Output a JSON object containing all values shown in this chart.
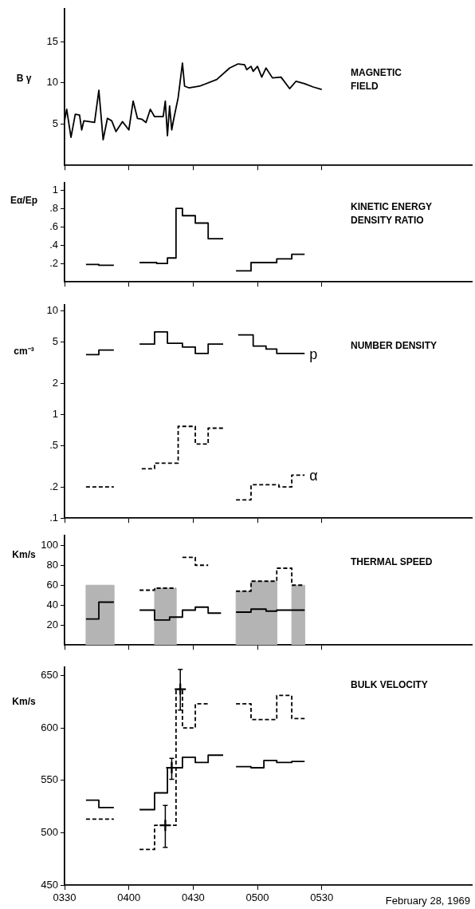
{
  "chart_data": [
    {
      "type": "line",
      "title": "MAGNETIC FIELD",
      "ylabel": "B γ",
      "xlim": [
        "1969-02-28T03:30",
        "1969-02-28T06:40"
      ],
      "xticks": [
        {
          "value": "1969-02-28T03:30",
          "label": null
        },
        {
          "value": "1969-02-28T04:00",
          "label": null
        },
        {
          "value": "1969-02-28T04:30",
          "label": null
        },
        {
          "value": "1969-02-28T05:00",
          "label": null
        },
        {
          "value": "1969-02-28T05:30",
          "label": null
        }
      ],
      "ylim": [
        0,
        19
      ],
      "yticks": [
        5,
        10,
        15
      ],
      "tick_labels": "y",
      "series": [
        {
          "color": "#000000",
          "x": [
            "1969-02-28T03:30",
            "1969-02-28T03:31",
            "1969-02-28T03:33",
            "1969-02-28T03:35",
            "1969-02-28T03:37",
            "1969-02-28T03:38",
            "1969-02-28T03:39",
            "1969-02-28T03:44",
            "1969-02-28T03:46",
            "1969-02-28T03:48",
            "1969-02-28T03:50",
            "1969-02-28T03:52",
            "1969-02-28T03:54",
            "1969-02-28T03:57",
            "1969-02-28T04:00",
            "1969-02-28T04:02",
            "1969-02-28T04:04",
            "1969-02-28T04:06",
            "1969-02-28T04:08",
            "1969-02-28T04:10",
            "1969-02-28T04:12",
            "1969-02-28T04:16",
            "1969-02-28T04:17",
            "1969-02-28T04:18",
            "1969-02-28T04:19",
            "1969-02-28T04:20",
            "1969-02-28T04:21",
            "1969-02-28T04:23",
            "1969-02-28T04:25",
            "1969-02-28T04:26",
            "1969-02-28T04:28",
            "1969-02-28T04:33",
            "1969-02-28T04:41",
            "1969-02-28T04:47",
            "1969-02-28T04:51",
            "1969-02-28T04:54",
            "1969-02-28T04:55",
            "1969-02-28T04:57",
            "1969-02-28T04:58",
            "1969-02-28T05:00",
            "1969-02-28T05:02",
            "1969-02-28T05:04",
            "1969-02-28T05:07",
            "1969-02-28T05:11",
            "1969-02-28T05:15",
            "1969-02-28T05:18",
            "1969-02-28T05:22",
            "1969-02-28T05:26",
            "1969-02-28T05:30"
          ],
          "values": [
            5.4,
            6.8,
            3.4,
            6.2,
            6.1,
            4.3,
            5.4,
            5.2,
            9.1,
            3.1,
            5.7,
            5.4,
            4.1,
            5.3,
            4.3,
            7.8,
            5.7,
            5.6,
            5.2,
            6.8,
            5.9,
            5.9,
            7.8,
            3.6,
            7.2,
            4.3,
            5.7,
            8.2,
            12.4,
            9.6,
            9.4,
            9.6,
            10.4,
            11.8,
            12.3,
            12.2,
            11.6,
            12.0,
            11.4,
            12.0,
            10.7,
            11.8,
            10.6,
            10.7,
            9.3,
            10.2,
            9.9,
            9.5,
            9.2
          ]
        }
      ]
    },
    {
      "type": "step",
      "title": "KINETIC ENERGY DENSITY RATIO",
      "ylabel": "Eα/Ep",
      "xlim": [
        "1969-02-28T03:30",
        "1969-02-28T06:40"
      ],
      "xticks": [
        {
          "value": "1969-02-28T03:30",
          "label": null
        },
        {
          "value": "1969-02-28T04:00",
          "label": null
        },
        {
          "value": "1969-02-28T04:30",
          "label": null
        },
        {
          "value": "1969-02-28T05:00",
          "label": null
        },
        {
          "value": "1969-02-28T05:30",
          "label": null
        }
      ],
      "ylim": [
        0,
        1.08
      ],
      "yticks": [
        {
          "value": 0.2,
          "label": ".2"
        },
        {
          "value": 0.4,
          "label": ".4"
        },
        {
          "value": 0.6,
          "label": ".6"
        },
        {
          "value": 0.8,
          "label": ".8"
        },
        1
      ],
      "tick_labels": "y",
      "series": [
        {
          "color": "#000000",
          "x": [
            "1969-02-28T03:40",
            "1969-02-28T03:46",
            "1969-02-28T03:53",
            "1969-02-28T03:57",
            "1969-02-28T04:05",
            "1969-02-28T04:13",
            "1969-02-28T04:18",
            "1969-02-28T04:22",
            "1969-02-28T04:25",
            "1969-02-28T04:31",
            "1969-02-28T04:37",
            "1969-02-28T04:44",
            "1969-02-28T04:47",
            "1969-02-28T04:50",
            "1969-02-28T04:57",
            "1969-02-28T05:09",
            "1969-02-28T05:16",
            "1969-02-28T05:22"
          ],
          "values": [
            0.19,
            0.18,
            0.18,
            null,
            0.21,
            0.2,
            0.26,
            0.8,
            0.72,
            0.64,
            0.47,
            0.47,
            null,
            0.12,
            0.21,
            0.25,
            0.3,
            0.3
          ]
        }
      ]
    },
    {
      "type": "step",
      "title": "NUMBER DENSITY",
      "ylabel": "cm⁻³",
      "log": "y",
      "xlim": [
        "1969-02-28T03:30",
        "1969-02-28T06:40"
      ],
      "xticks": [
        {
          "value": "1969-02-28T03:30",
          "label": null
        },
        {
          "value": "1969-02-28T04:00",
          "label": null
        },
        {
          "value": "1969-02-28T04:30",
          "label": null
        },
        {
          "value": "1969-02-28T05:00",
          "label": null
        },
        {
          "value": "1969-02-28T05:30",
          "label": null
        }
      ],
      "ylim": [
        0.1,
        11.5
      ],
      "yticks": [
        {
          "value": 0.1,
          "label": ".1"
        },
        {
          "value": 0.2,
          "label": ".2"
        },
        {
          "value": 0.5,
          "label": ".5"
        },
        1,
        2,
        5,
        10
      ],
      "tick_labels": "y",
      "series": [
        {
          "name": "p",
          "color": "#000000",
          "x": [
            "1969-02-28T03:40",
            "1969-02-28T03:46",
            "1969-02-28T03:53",
            "1969-02-28T03:57",
            "1969-02-28T04:05",
            "1969-02-28T04:12",
            "1969-02-28T04:18",
            "1969-02-28T04:25",
            "1969-02-28T04:31",
            "1969-02-28T04:37",
            "1969-02-28T04:44",
            "1969-02-28T04:47",
            "1969-02-28T04:51",
            "1969-02-28T04:58",
            "1969-02-28T05:04",
            "1969-02-28T05:09",
            "1969-02-28T05:22"
          ],
          "values": [
            3.8,
            4.2,
            4.2,
            null,
            4.8,
            6.3,
            4.9,
            4.5,
            3.9,
            4.8,
            4.8,
            null,
            5.9,
            4.6,
            4.3,
            3.9,
            3.9
          ]
        },
        {
          "name": "α",
          "color": "#000000",
          "line_style": "dashed",
          "x": [
            "1969-02-28T03:40",
            "1969-02-28T03:53",
            "1969-02-28T03:57",
            "1969-02-28T04:06",
            "1969-02-28T04:12",
            "1969-02-28T04:23",
            "1969-02-28T04:31",
            "1969-02-28T04:37",
            "1969-02-28T04:44",
            "1969-02-28T04:47",
            "1969-02-28T04:50",
            "1969-02-28T04:57",
            "1969-02-28T05:10",
            "1969-02-28T05:16",
            "1969-02-28T05:22"
          ],
          "values": [
            0.2,
            0.2,
            null,
            0.3,
            0.34,
            0.77,
            0.52,
            0.74,
            0.74,
            null,
            0.15,
            0.21,
            0.2,
            0.26,
            0.26
          ]
        }
      ]
    },
    {
      "type": "step",
      "title": "THERMAL SPEED",
      "ylabel": "Km/s",
      "xlim": [
        "1969-02-28T03:30",
        "1969-02-28T06:40"
      ],
      "xticks": [
        {
          "value": "1969-02-28T03:30",
          "label": null
        },
        {
          "value": "1969-02-28T04:00",
          "label": null
        },
        {
          "value": "1969-02-28T04:30",
          "label": null
        },
        {
          "value": "1969-02-28T05:00",
          "label": null
        },
        {
          "value": "1969-02-28T05:30",
          "label": null
        }
      ],
      "ylim": [
        0,
        110
      ],
      "yticks": [
        20,
        40,
        60,
        80,
        100
      ],
      "tick_labels": "y",
      "series": [
        {
          "type": "area",
          "color": "#b4b4b4",
          "x": [
            "1969-02-28T03:40",
            "1969-02-28T03:40",
            "1969-02-28T03:53",
            "1969-02-28T03:53",
            "1969-02-28T03:57",
            "1969-02-28T04:12",
            "1969-02-28T04:12",
            "1969-02-28T04:22",
            "1969-02-28T04:22",
            "1969-02-28T04:36",
            "1969-02-28T04:50",
            "1969-02-28T04:50",
            "1969-02-28T04:57",
            "1969-02-28T04:57",
            "1969-02-28T05:09",
            "1969-02-28T05:09",
            "1969-02-28T05:12",
            "1969-02-28T05:16",
            "1969-02-28T05:16",
            "1969-02-28T05:22",
            "1969-02-28T05:22"
          ],
          "values": [
            0,
            60,
            60,
            0,
            null,
            0,
            57,
            57,
            0,
            null,
            0,
            54,
            54,
            64,
            64,
            0,
            null,
            0,
            60,
            60,
            0
          ]
        },
        {
          "color": "#000000",
          "line_style": "dashed",
          "x": [
            "1969-02-28T04:05",
            "1969-02-28T04:12",
            "1969-02-28T04:22",
            "1969-02-28T04:23",
            "1969-02-28T04:25",
            "1969-02-28T04:31",
            "1969-02-28T04:37",
            "1969-02-28T04:42",
            "1969-02-28T04:50",
            "1969-02-28T04:57",
            "1969-02-28T05:09",
            "1969-02-28T05:16",
            "1969-02-28T05:22"
          ],
          "values": [
            55,
            57,
            57,
            null,
            88,
            80,
            80,
            null,
            54,
            64,
            77,
            60,
            60
          ]
        },
        {
          "color": "#000000",
          "x": [
            "1969-02-28T03:40",
            "1969-02-28T03:46",
            "1969-02-28T03:53",
            "1969-02-28T03:57",
            "1969-02-28T04:05",
            "1969-02-28T04:12",
            "1969-02-28T04:19",
            "1969-02-28T04:25",
            "1969-02-28T04:31",
            "1969-02-28T04:37",
            "1969-02-28T04:43",
            "1969-02-28T04:47",
            "1969-02-28T04:50",
            "1969-02-28T04:57",
            "1969-02-28T05:04",
            "1969-02-28T05:09",
            "1969-02-28T05:22"
          ],
          "values": [
            26,
            43,
            43,
            null,
            35,
            25,
            28,
            35,
            38,
            32,
            32,
            null,
            33,
            36,
            34,
            35,
            35
          ]
        }
      ]
    },
    {
      "type": "step",
      "title": "BULK VELOCITY",
      "ylabel": "Km/s",
      "xlim": [
        "1969-02-28T03:30",
        "1969-02-28T06:40"
      ],
      "xticks": [
        {
          "value": "1969-02-28T03:30",
          "label": "0330"
        },
        {
          "value": "1969-02-28T04:00",
          "label": "0400"
        },
        {
          "value": "1969-02-28T04:30",
          "label": "0430"
        },
        {
          "value": "1969-02-28T05:00",
          "label": "0500"
        },
        {
          "value": "1969-02-28T05:30",
          "label": "0530"
        }
      ],
      "ylim": [
        450,
        658
      ],
      "yticks": [
        450,
        500,
        550,
        600,
        650
      ],
      "annotations": [
        "February 28, 1969"
      ],
      "series": [
        {
          "color": "#000000",
          "x": [
            "1969-02-28T03:40",
            "1969-02-28T03:46",
            "1969-02-28T03:53",
            "1969-02-28T03:57",
            "1969-02-28T04:05",
            "1969-02-28T04:12",
            "1969-02-28T04:18",
            "1969-02-28T04:25",
            "1969-02-28T04:31",
            "1969-02-28T04:37",
            "1969-02-28T04:44",
            "1969-02-28T04:47",
            "1969-02-28T04:50",
            "1969-02-28T04:57",
            "1969-02-28T05:03",
            "1969-02-28T05:09",
            "1969-02-28T05:16",
            "1969-02-28T05:22"
          ],
          "values": [
            531,
            524,
            524,
            null,
            522,
            538,
            562,
            572,
            567,
            574,
            574,
            null,
            563,
            562,
            569,
            567,
            568,
            568
          ]
        },
        {
          "color": "#000000",
          "line_style": "dashed",
          "x": [
            "1969-02-28T03:40",
            "1969-02-28T03:53",
            "1969-02-28T03:57",
            "1969-02-28T04:05",
            "1969-02-28T04:12",
            "1969-02-28T04:22",
            "1969-02-28T04:25",
            "1969-02-28T04:31",
            "1969-02-28T04:37",
            "1969-02-28T04:42",
            "1969-02-28T04:50",
            "1969-02-28T04:57",
            "1969-02-28T05:09",
            "1969-02-28T05:16",
            "1969-02-28T05:22"
          ],
          "values": [
            513,
            513,
            null,
            484,
            507,
            637,
            600,
            623,
            623,
            null,
            623,
            608,
            631,
            609,
            609
          ]
        },
        {
          "type": "scatter",
          "marker": "cross",
          "color": "#000000",
          "x": [
            "1969-02-28T04:17",
            "1969-02-28T04:20",
            "1969-02-28T04:24"
          ],
          "values": [
            507,
            562,
            637
          ],
          "errors": [
            [
              486,
              526
            ],
            [
              551,
              571
            ],
            [
              617,
              656
            ]
          ]
        }
      ]
    }
  ]
}
